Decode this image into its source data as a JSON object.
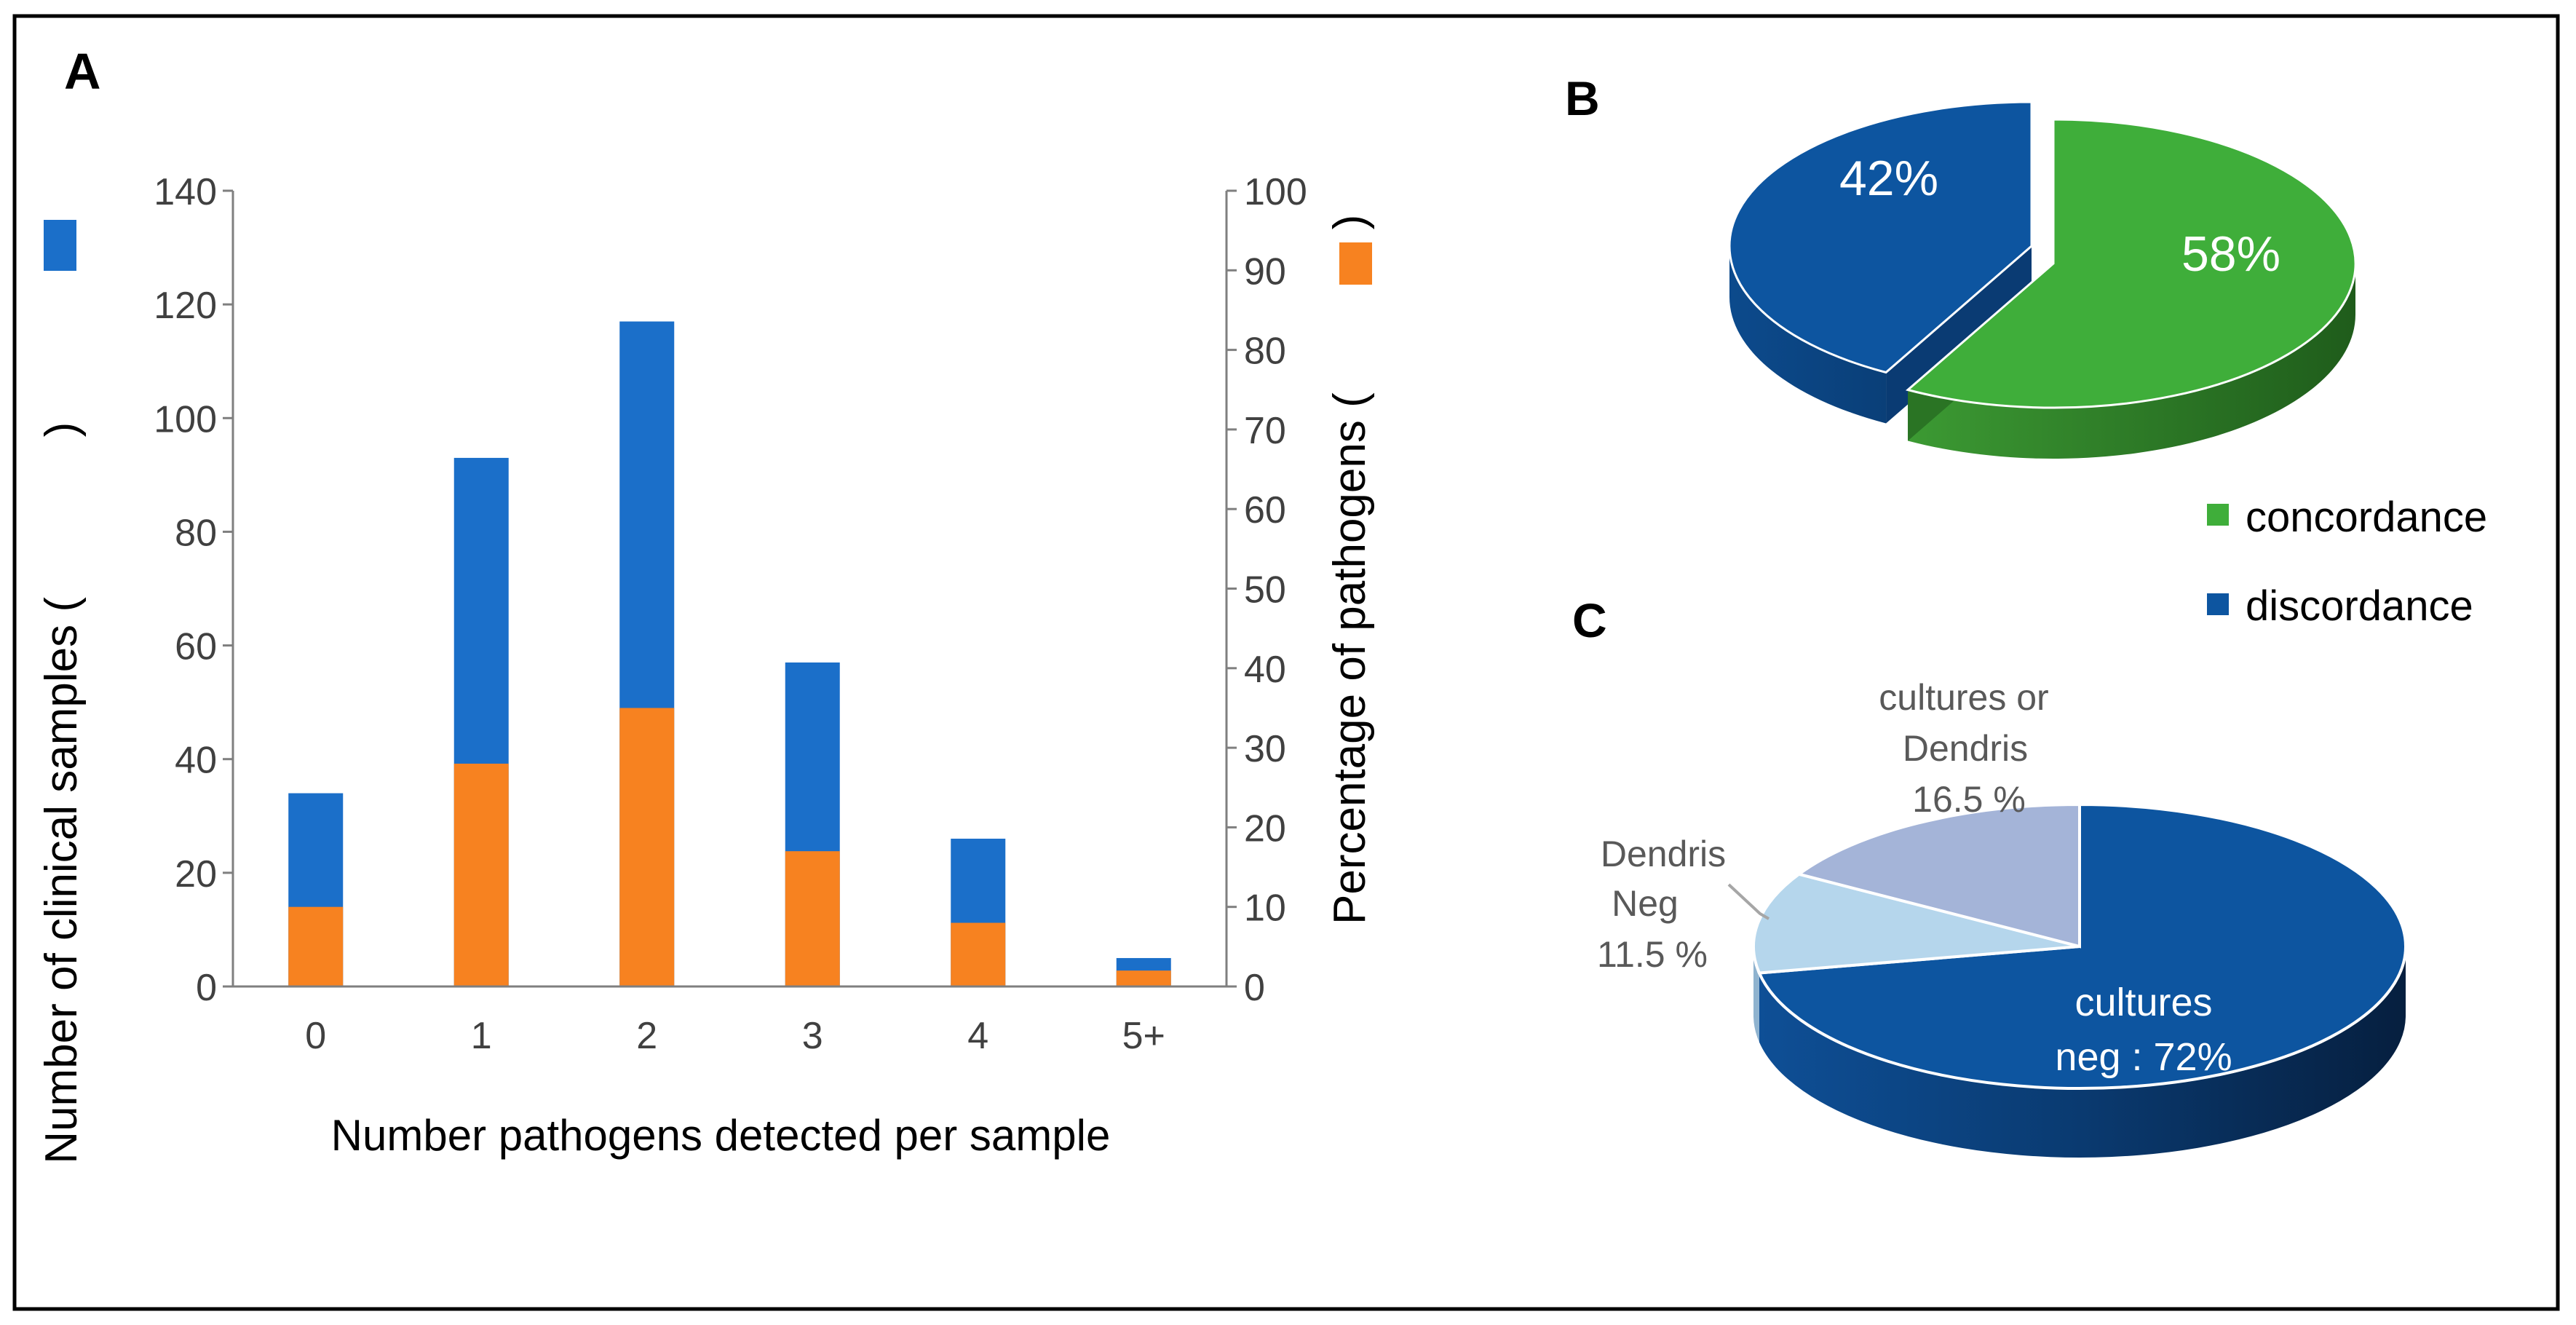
{
  "panels": {
    "a": "A",
    "b": "B",
    "c": "C"
  },
  "colors": {
    "blue": "#1b6fc9",
    "orange": "#f78220",
    "axis": "#7f7f7f",
    "text": "#404040",
    "green": "#3fae3a",
    "green_dark": "#2a7a24",
    "navy": "#0d55a0",
    "navy_dark": "#07294f",
    "light_blue": "#b5d6ec",
    "lavender": "#a4b4d8",
    "frame": "#000000"
  },
  "chart_data": [
    {
      "id": "A",
      "type": "bar",
      "categories": [
        "0",
        "1",
        "2",
        "3",
        "4",
        "5+"
      ],
      "series": [
        {
          "name": "Number of clinical samples",
          "axis": "left",
          "values": [
            34,
            93,
            117,
            57,
            26,
            5
          ]
        },
        {
          "name": "Percentage of pathogens",
          "axis": "right",
          "values": [
            10,
            28,
            35,
            17,
            8,
            2
          ]
        }
      ],
      "xlabel": "Number pathogens detected per sample",
      "ylabel": "Number of clinical samples (",
      "ylabel_close": ")",
      "y2label": "Percentage of pathogens (",
      "y2label_close": ")",
      "ylim": [
        0,
        140
      ],
      "yticks": [
        "0",
        "20",
        "40",
        "60",
        "80",
        "100",
        "120",
        "140"
      ],
      "y2lim": [
        0,
        100
      ],
      "y2ticks": [
        "0",
        "10",
        "20",
        "30",
        "40",
        "50",
        "60",
        "70",
        "80",
        "90",
        "100"
      ]
    },
    {
      "id": "B",
      "type": "pie",
      "style": "3d-exploded",
      "labels": [
        "concordance",
        "discordance"
      ],
      "values": [
        58,
        42
      ],
      "slice_labels": [
        "58%",
        "42%"
      ],
      "legend": [
        "concordance",
        "discordance"
      ]
    },
    {
      "id": "C",
      "type": "pie",
      "style": "3d",
      "labels": [
        "cultures neg",
        "Dendris Neg",
        "cultures or Dendris"
      ],
      "values": [
        72,
        11.5,
        16.5
      ],
      "slice_label_lines": [
        [
          "cultures",
          "neg : 72%"
        ],
        [
          "Dendris",
          "Neg",
          "11.5 %"
        ],
        [
          "cultures or",
          "Dendris",
          "16.5 %"
        ]
      ]
    }
  ]
}
